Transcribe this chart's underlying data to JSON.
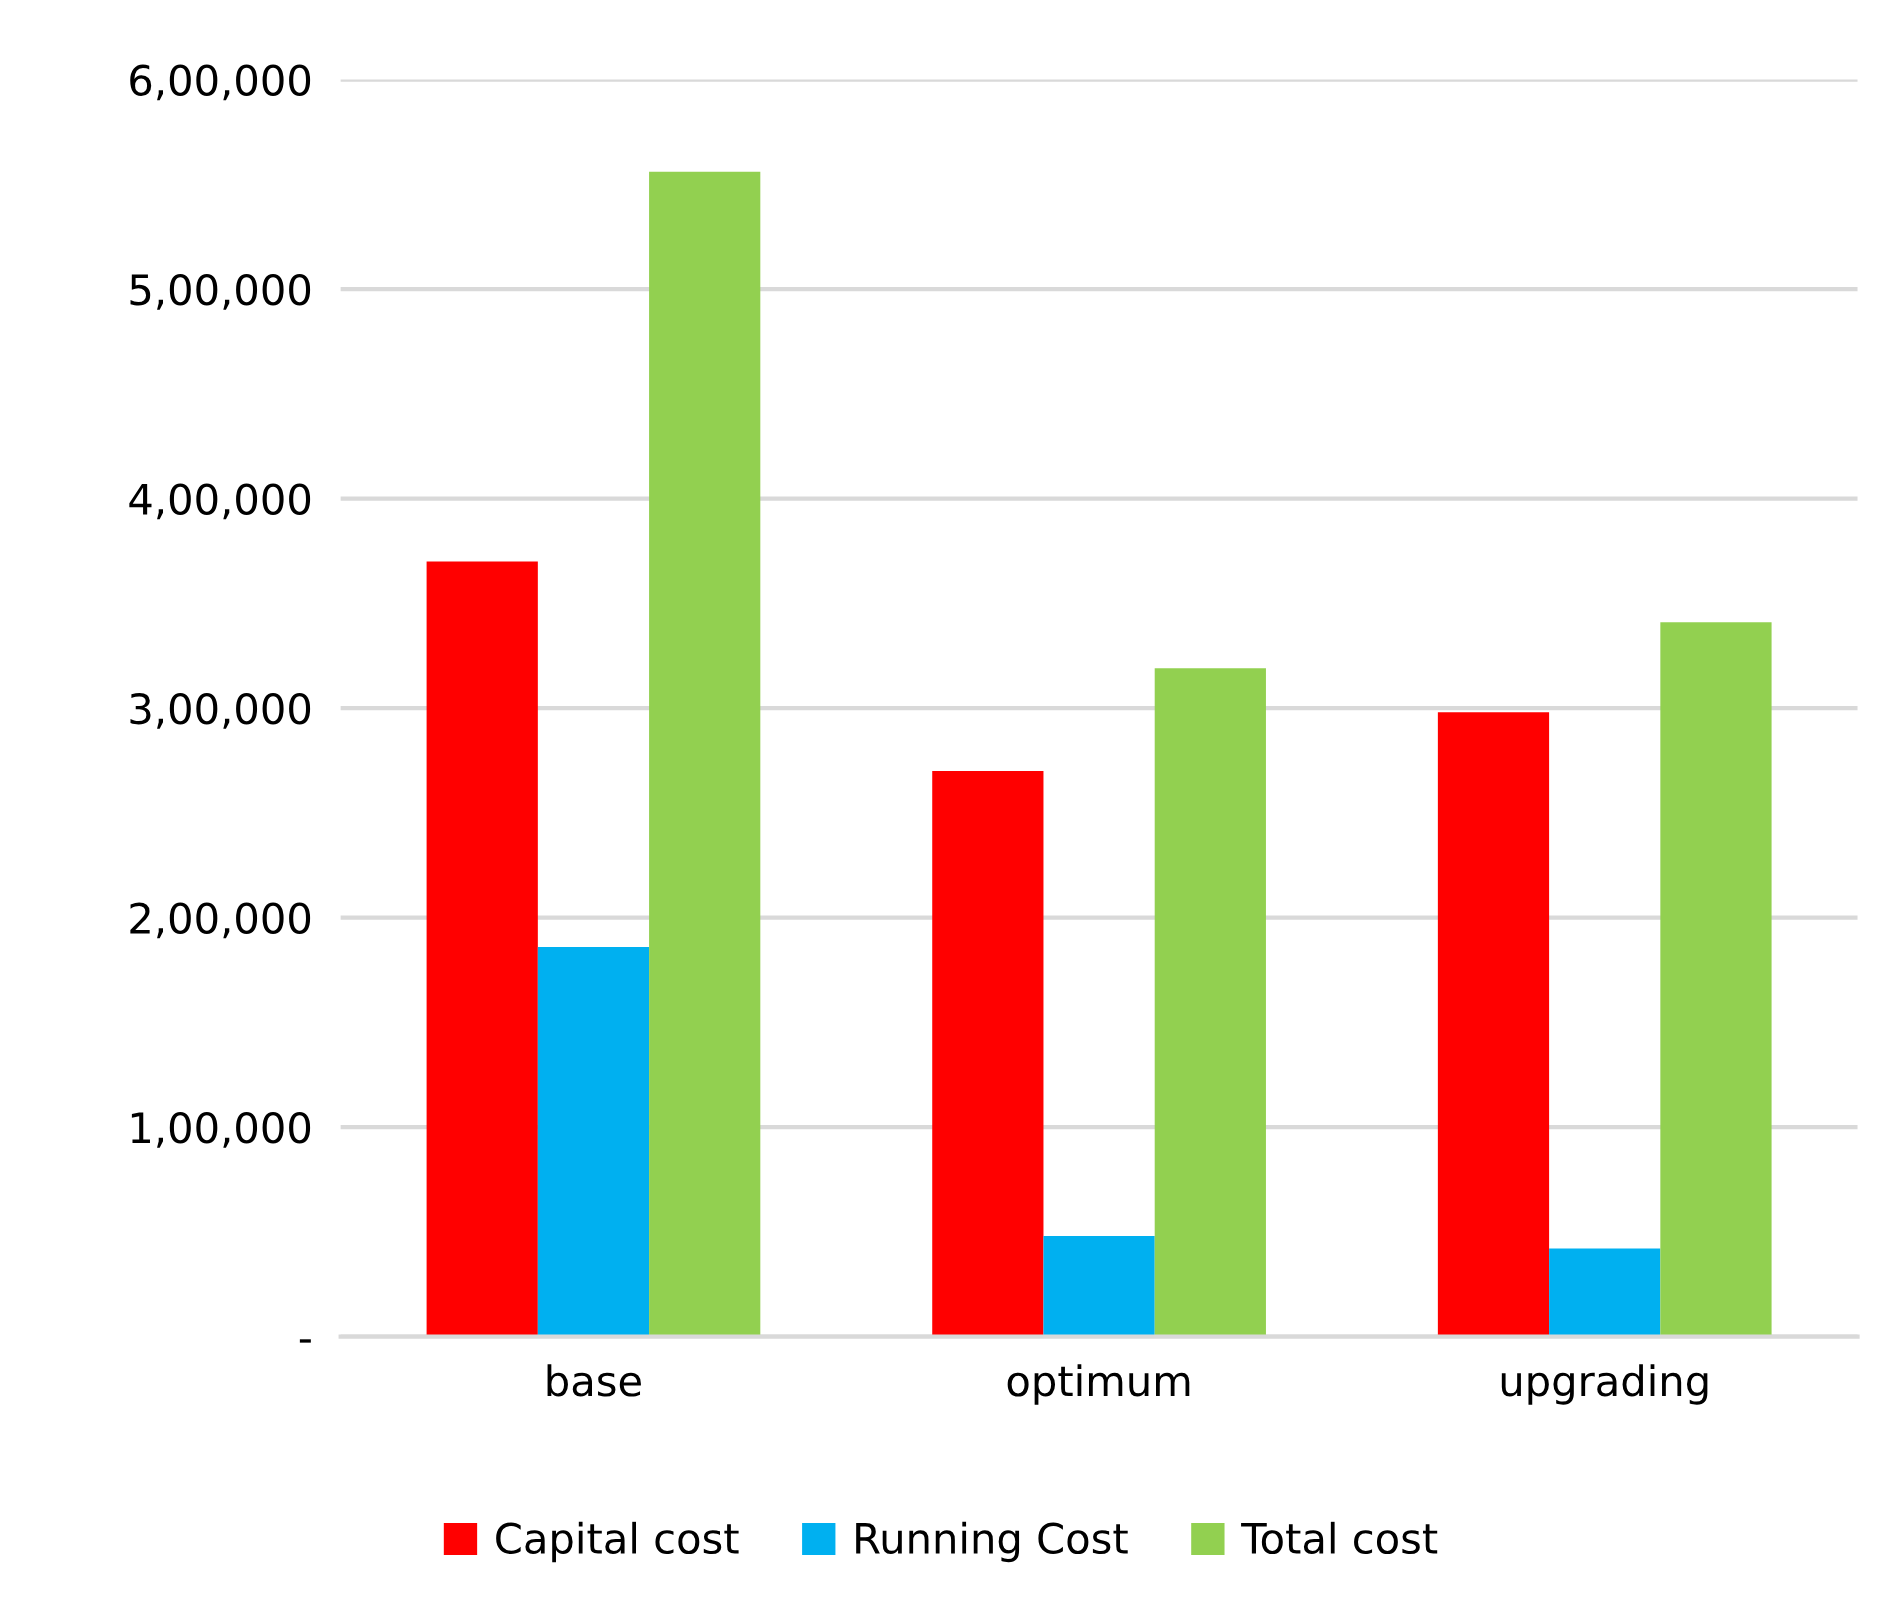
{
  "chart_data": {
    "type": "bar",
    "categories": [
      "base",
      "optimum",
      "upgrading"
    ],
    "series": [
      {
        "name": "Capital cost",
        "color": "#ff0000",
        "values": [
          370000,
          270000,
          298000
        ]
      },
      {
        "name": "Running Cost",
        "color": "#00b0f0",
        "values": [
          186000,
          48000,
          42000
        ]
      },
      {
        "name": "Total cost",
        "color": "#92d050",
        "values": [
          556000,
          319000,
          341000
        ]
      }
    ],
    "ylim": [
      0,
      600000
    ],
    "yticks": [
      {
        "value": 0,
        "label": "-"
      },
      {
        "value": 100000,
        "label": "1,00,000"
      },
      {
        "value": 200000,
        "label": "2,00,000"
      },
      {
        "value": 300000,
        "label": "3,00,000"
      },
      {
        "value": 400000,
        "label": "4,00,000"
      },
      {
        "value": 500000,
        "label": "5,00,000"
      },
      {
        "value": 600000,
        "label": "6,00,000"
      }
    ],
    "grid": "y",
    "legend": "bottom"
  }
}
